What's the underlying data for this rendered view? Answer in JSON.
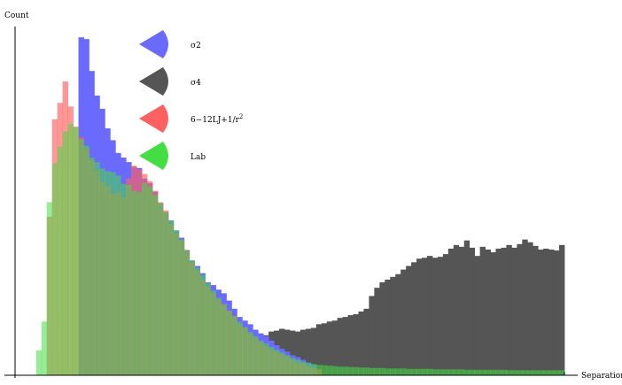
{
  "chart_data": {
    "type": "bar",
    "title": "",
    "xlabel": "Separation",
    "ylabel": "Count",
    "grid": false,
    "legend_position": "top-left",
    "bin_count": 104,
    "series": [
      {
        "name": "σ2",
        "color": "#6a6aff",
        "values": [
          0,
          0,
          0,
          0,
          0,
          0,
          0,
          0,
          0,
          0,
          0,
          0,
          7.42,
          7.38,
          6.68,
          6.14,
          5.85,
          5.42,
          5.16,
          4.88,
          4.78,
          4.68,
          4.58,
          4.55,
          4.32,
          4.22,
          4.03,
          3.78,
          3.58,
          3.4,
          3.18,
          3.02,
          2.75,
          2.52,
          2.4,
          2.24,
          2.04,
          1.98,
          1.88,
          1.8,
          1.64,
          1.46,
          1.28,
          1.2,
          1.12,
          1.0,
          0.92,
          0.86,
          0.76,
          0.66,
          0.58,
          0.52,
          0.44,
          0.4,
          0.34,
          0.28,
          0.22,
          0,
          0,
          0,
          0,
          0,
          0,
          0,
          0,
          0,
          0,
          0,
          0,
          0,
          0,
          0,
          0,
          0,
          0,
          0,
          0,
          0,
          0,
          0,
          0,
          0,
          0,
          0,
          0,
          0,
          0,
          0,
          0,
          0,
          0,
          0,
          0,
          0,
          0,
          0,
          0,
          0,
          0,
          0,
          0,
          0,
          0,
          0
        ]
      },
      {
        "name": "σ4",
        "color": "#555555",
        "values": [
          0,
          0,
          0,
          0,
          0,
          0,
          0,
          0,
          0,
          0,
          0,
          0,
          0,
          0,
          0,
          0,
          0,
          0,
          0,
          0,
          0,
          0,
          0.05,
          0.09,
          0.14,
          0.18,
          0.2,
          0.22,
          0.2,
          0.18,
          0.2,
          0.24,
          0.26,
          0.28,
          0.32,
          0.34,
          0.36,
          0.38,
          0.4,
          0.43,
          0.46,
          0.5,
          0.55,
          0.62,
          0.68,
          0.74,
          0.8,
          0.88,
          0.96,
          0.98,
          1.02,
          1.0,
          0.98,
          0.96,
          1.0,
          1.02,
          1.04,
          1.12,
          1.14,
          1.18,
          1.2,
          1.26,
          1.28,
          1.32,
          1.34,
          1.4,
          1.46,
          1.74,
          1.92,
          2.04,
          2.1,
          2.16,
          2.22,
          2.32,
          2.4,
          2.48,
          2.56,
          2.58,
          2.62,
          2.58,
          2.6,
          2.66,
          2.78,
          2.86,
          2.82,
          2.96,
          2.8,
          2.62,
          2.82,
          2.76,
          2.7,
          2.78,
          2.8,
          2.86,
          2.8,
          2.88,
          2.98,
          2.92,
          2.84,
          2.76,
          2.78,
          2.76,
          2.74,
          2.86
        ]
      },
      {
        "name": "6−12LJ+1/r^2",
        "color": "#ff6060",
        "values": [
          0,
          0,
          0,
          0,
          0,
          0,
          3.48,
          5.62,
          5.98,
          6.45,
          5.9,
          5.46,
          5.22,
          4.98,
          4.72,
          4.5,
          4.25,
          4.15,
          3.98,
          4.02,
          3.9,
          4.32,
          4.6,
          4.52,
          4.42,
          4.26,
          4.05,
          3.8,
          3.62,
          3.32,
          3.12,
          2.96,
          2.74,
          2.48,
          2.3,
          2.1,
          1.94,
          1.8,
          1.66,
          1.56,
          1.42,
          1.3,
          1.12,
          1.04,
          0.92,
          0.82,
          0.74,
          0.64,
          0.56,
          0.52,
          0.46,
          0.4,
          0.33,
          0.28,
          0.26,
          0.2,
          0.16,
          0.14,
          0,
          0,
          0,
          0,
          0,
          0,
          0,
          0,
          0,
          0,
          0,
          0,
          0,
          0,
          0,
          0,
          0,
          0,
          0,
          0,
          0,
          0,
          0,
          0,
          0,
          0,
          0,
          0,
          0,
          0,
          0,
          0,
          0,
          0,
          0,
          0,
          0,
          0,
          0,
          0,
          0,
          0,
          0,
          0,
          0,
          0
        ]
      },
      {
        "name": "Lab",
        "color": "#44dd44",
        "values": [
          0,
          0,
          0,
          0,
          0.55,
          1.18,
          3.8,
          4.65,
          5.02,
          5.35,
          5.52,
          5.44,
          5.18,
          5.04,
          4.78,
          4.68,
          4.54,
          4.48,
          4.46,
          4.38,
          4.2,
          4.18,
          4.05,
          4.02,
          4.22,
          4.14,
          3.96,
          3.78,
          3.58,
          3.4,
          3.18,
          2.98,
          2.74,
          2.52,
          2.36,
          2.2,
          2.02,
          1.86,
          1.7,
          1.56,
          1.42,
          1.3,
          1.18,
          1.06,
          0.95,
          0.86,
          0.76,
          0.7,
          0.62,
          0.56,
          0.5,
          0.44,
          0.38,
          0.34,
          0.3,
          0.27,
          0.25,
          0.23,
          0.22,
          0.21,
          0.2,
          0.19,
          0.19,
          0.18,
          0.18,
          0.17,
          0.17,
          0.16,
          0.16,
          0.16,
          0.15,
          0.15,
          0.15,
          0.15,
          0.14,
          0.14,
          0.14,
          0.14,
          0.14,
          0.13,
          0.13,
          0.13,
          0.13,
          0.13,
          0.13,
          0.12,
          0.12,
          0.12,
          0.12,
          0.12,
          0.12,
          0.12,
          0.12,
          0.11,
          0.11,
          0.11,
          0.11,
          0.11,
          0.11,
          0.11,
          0.11,
          0.11,
          0.11,
          0.11
        ]
      }
    ],
    "legend": [
      {
        "label_main": "σ2",
        "label_sup": "",
        "series": 0
      },
      {
        "label_main": "σ4",
        "label_sup": "",
        "series": 1
      },
      {
        "label_main": "6−12LJ+1/r",
        "label_sup": "2",
        "series": 2
      },
      {
        "label_main": "Lab",
        "label_sup": "",
        "series": 3
      }
    ],
    "ylim": [
      0,
      7.5
    ]
  }
}
